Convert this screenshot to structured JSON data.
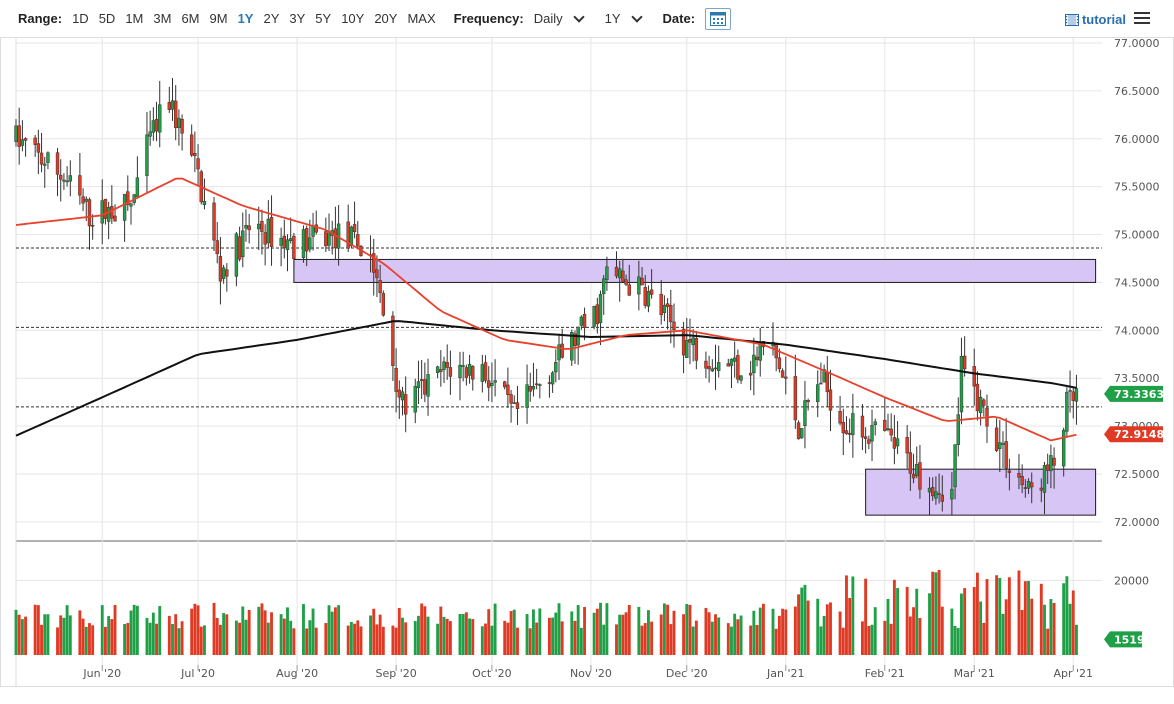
{
  "toolbar": {
    "range_label": "Range:",
    "ranges": [
      "1D",
      "5D",
      "1M",
      "3M",
      "6M",
      "9M",
      "1Y",
      "2Y",
      "3Y",
      "5Y",
      "10Y",
      "20Y",
      "MAX"
    ],
    "active_range": "1Y",
    "frequency_label": "Frequency:",
    "frequency_value": "Daily",
    "period_value": "1Y",
    "date_label": "Date:",
    "tutorial_label": "tutorial"
  },
  "colors": {
    "up": "#1fa047",
    "down": "#e03a24",
    "ma_fast": "#e8412c",
    "ma_slow": "#111111",
    "zone_fill": "#d7c5f5",
    "zone_stroke": "#1a1a1a",
    "accent": "#2a7ab0"
  },
  "chart_data": {
    "type": "candlestick",
    "ylim": [
      71.8,
      77.0
    ],
    "yticks": [
      "77.0000",
      "76.5000",
      "76.0000",
      "75.5000",
      "75.0000",
      "74.5000",
      "74.0000",
      "73.5000",
      "73.0000",
      "72.5000",
      "72.0000"
    ],
    "xticks": [
      "Jun '20",
      "Jul '20",
      "Aug '20",
      "Sep '20",
      "Oct '20",
      "Nov '20",
      "Dec '20",
      "Jan '21",
      "Feb '21",
      "Mar '21",
      "Apr '21"
    ],
    "x_start": "2020-05-05",
    "x_end": "2021-04-10",
    "last_price": "73.3363",
    "ma_fast_last": "72.9148",
    "volume_last": "1519",
    "volume_ticks": [
      "20000"
    ],
    "volume_max": 30000,
    "resistance_zone": {
      "from": "2020-07-31",
      "to": "2021-04-08",
      "low": 74.5,
      "high": 74.74
    },
    "support_zone": {
      "from": "2021-01-26",
      "to": "2021-04-08",
      "low": 72.07,
      "high": 72.55
    },
    "horizontal_lines": [
      74.86,
      74.03,
      73.2
    ],
    "ohlc_anchors": [
      [
        "2020-05-05",
        76.0
      ],
      [
        "2020-05-20",
        75.6
      ],
      [
        "2020-05-28",
        75.2
      ],
      [
        "2020-06-10",
        75.3
      ],
      [
        "2020-06-16",
        76.0
      ],
      [
        "2020-06-22",
        76.4
      ],
      [
        "2020-07-01",
        75.6
      ],
      [
        "2020-07-08",
        74.6
      ],
      [
        "2020-07-18",
        75.1
      ],
      [
        "2020-07-30",
        74.9
      ],
      [
        "2020-08-15",
        75.0
      ],
      [
        "2020-08-24",
        74.8
      ],
      [
        "2020-09-03",
        73.2
      ],
      [
        "2020-09-17",
        73.6
      ],
      [
        "2020-09-28",
        73.6
      ],
      [
        "2020-10-08",
        73.1
      ],
      [
        "2020-10-17",
        73.5
      ],
      [
        "2020-11-03",
        74.2
      ],
      [
        "2020-11-06",
        74.6
      ],
      [
        "2020-11-18",
        74.4
      ],
      [
        "2020-11-30",
        73.9
      ],
      [
        "2020-12-10",
        73.7
      ],
      [
        "2020-12-20",
        73.6
      ],
      [
        "2020-12-27",
        73.9
      ],
      [
        "2021-01-05",
        73.0
      ],
      [
        "2021-01-12",
        73.5
      ],
      [
        "2021-01-20",
        73.0
      ],
      [
        "2021-02-01",
        72.9
      ],
      [
        "2021-02-12",
        72.5
      ],
      [
        "2021-02-22",
        72.3
      ],
      [
        "2021-02-25",
        73.6
      ],
      [
        "2021-03-05",
        73.1
      ],
      [
        "2021-03-12",
        72.6
      ],
      [
        "2021-03-18",
        72.3
      ],
      [
        "2021-03-26",
        72.6
      ],
      [
        "2021-03-30",
        73.2
      ],
      [
        "2021-04-02",
        73.3
      ]
    ],
    "ma_slow_anchors": [
      [
        "2020-05-05",
        72.9
      ],
      [
        "2020-06-01",
        73.3
      ],
      [
        "2020-07-01",
        73.75
      ],
      [
        "2020-08-01",
        73.9
      ],
      [
        "2020-09-01",
        74.1
      ],
      [
        "2020-10-01",
        74.0
      ],
      [
        "2020-11-01",
        73.93
      ],
      [
        "2020-12-01",
        73.95
      ],
      [
        "2021-01-01",
        73.85
      ],
      [
        "2021-02-01",
        73.7
      ],
      [
        "2021-03-01",
        73.55
      ],
      [
        "2021-03-25",
        73.45
      ],
      [
        "2021-04-02",
        73.4
      ]
    ],
    "ma_fast_anchors": [
      [
        "2020-05-05",
        75.1
      ],
      [
        "2020-06-01",
        75.2
      ],
      [
        "2020-06-25",
        75.6
      ],
      [
        "2020-07-15",
        75.3
      ],
      [
        "2020-08-10",
        75.05
      ],
      [
        "2020-08-28",
        74.7
      ],
      [
        "2020-09-15",
        74.2
      ],
      [
        "2020-10-05",
        73.9
      ],
      [
        "2020-10-25",
        73.8
      ],
      [
        "2020-11-12",
        73.95
      ],
      [
        "2020-12-01",
        74.0
      ],
      [
        "2020-12-25",
        73.85
      ],
      [
        "2021-01-15",
        73.55
      ],
      [
        "2021-02-01",
        73.3
      ],
      [
        "2021-02-20",
        73.05
      ],
      [
        "2021-03-08",
        73.1
      ],
      [
        "2021-03-25",
        72.85
      ],
      [
        "2021-04-02",
        72.91
      ]
    ]
  }
}
